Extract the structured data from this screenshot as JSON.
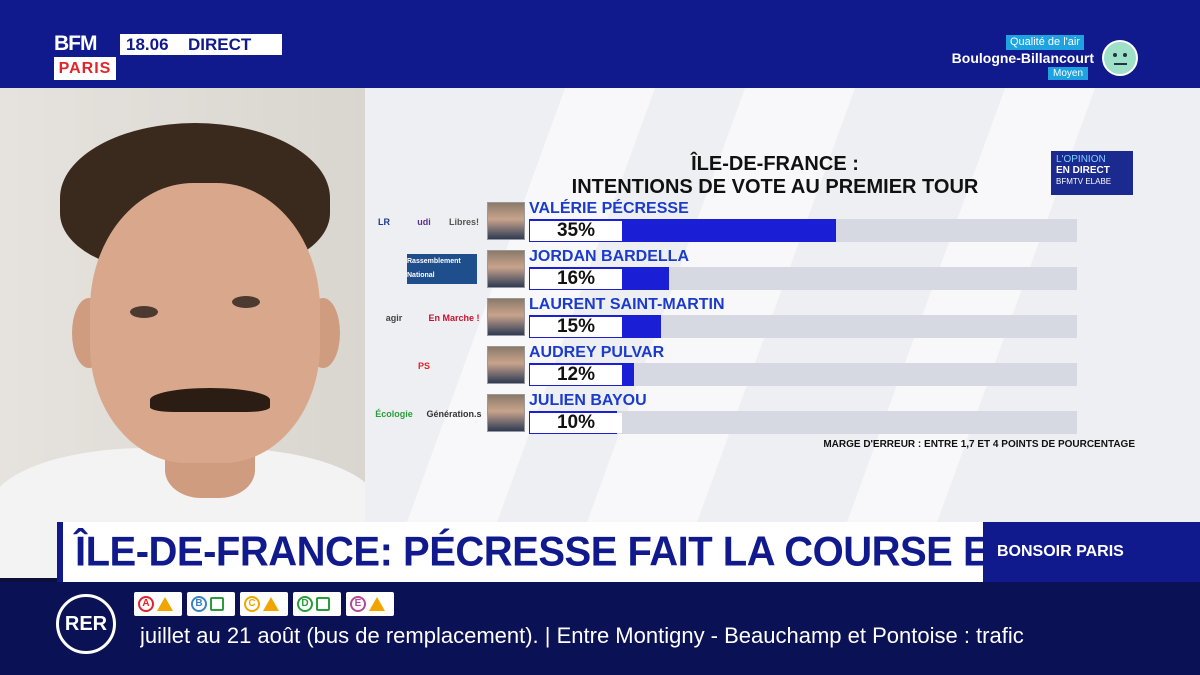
{
  "header": {
    "channel": "BFM",
    "channel_sub": "PARIS",
    "time": "18.06",
    "live_label": "DIRECT",
    "air_quality": {
      "label": "Qualité de l'air",
      "city": "Boulogne-Billancourt",
      "level": "Moyen",
      "icon": "neutral-face-icon"
    }
  },
  "graphic": {
    "title_line1": "ÎLE-DE-FRANCE :",
    "title_line2": "INTENTIONS DE VOTE AU PREMIER TOUR",
    "opinion_badge": {
      "line1": "L'OPINION",
      "line2": "EN DIRECT",
      "line3": "BFMTV ELABE"
    },
    "margin_note": "MARGE D'ERREUR : ENTRE 1,7 ET 4 POINTS DE POURCENTAGE"
  },
  "chart_data": {
    "type": "bar",
    "title": "ÎLE-DE-FRANCE : INTENTIONS DE VOTE AU PREMIER TOUR",
    "categories": [
      "VALÉRIE PÉCRESSE",
      "JORDAN BARDELLA",
      "LAURENT SAINT-MARTIN",
      "AUDREY PULVAR",
      "JULIEN BAYOU"
    ],
    "values": [
      35,
      16,
      15,
      12,
      10
    ],
    "value_labels": [
      "35%",
      "16%",
      "15%",
      "12%",
      "10%"
    ],
    "xlim": [
      0,
      100
    ],
    "orientation": "horizontal",
    "bar_color": "#1a1fd6",
    "track_color": "#d6d9e2"
  },
  "party_logos": [
    [
      "LR",
      "udi",
      "Libres!"
    ],
    [
      "Rassemblement National"
    ],
    [
      "agir",
      "En Marche !"
    ],
    [
      "PS"
    ],
    [
      "Écologie",
      "Génération.s"
    ]
  ],
  "headline": {
    "text": "ÎLE-DE-FRANCE: PÉCRESSE FAIT LA COURSE EN TÊTE",
    "show": "BONSOIR PARIS"
  },
  "ticker": {
    "network_label": "RER",
    "lines": [
      "A",
      "B",
      "C",
      "D",
      "E"
    ],
    "text": "juillet au 21 août (bus de remplacement). | Entre Montigny - Beauchamp et Pontoise : trafic"
  }
}
